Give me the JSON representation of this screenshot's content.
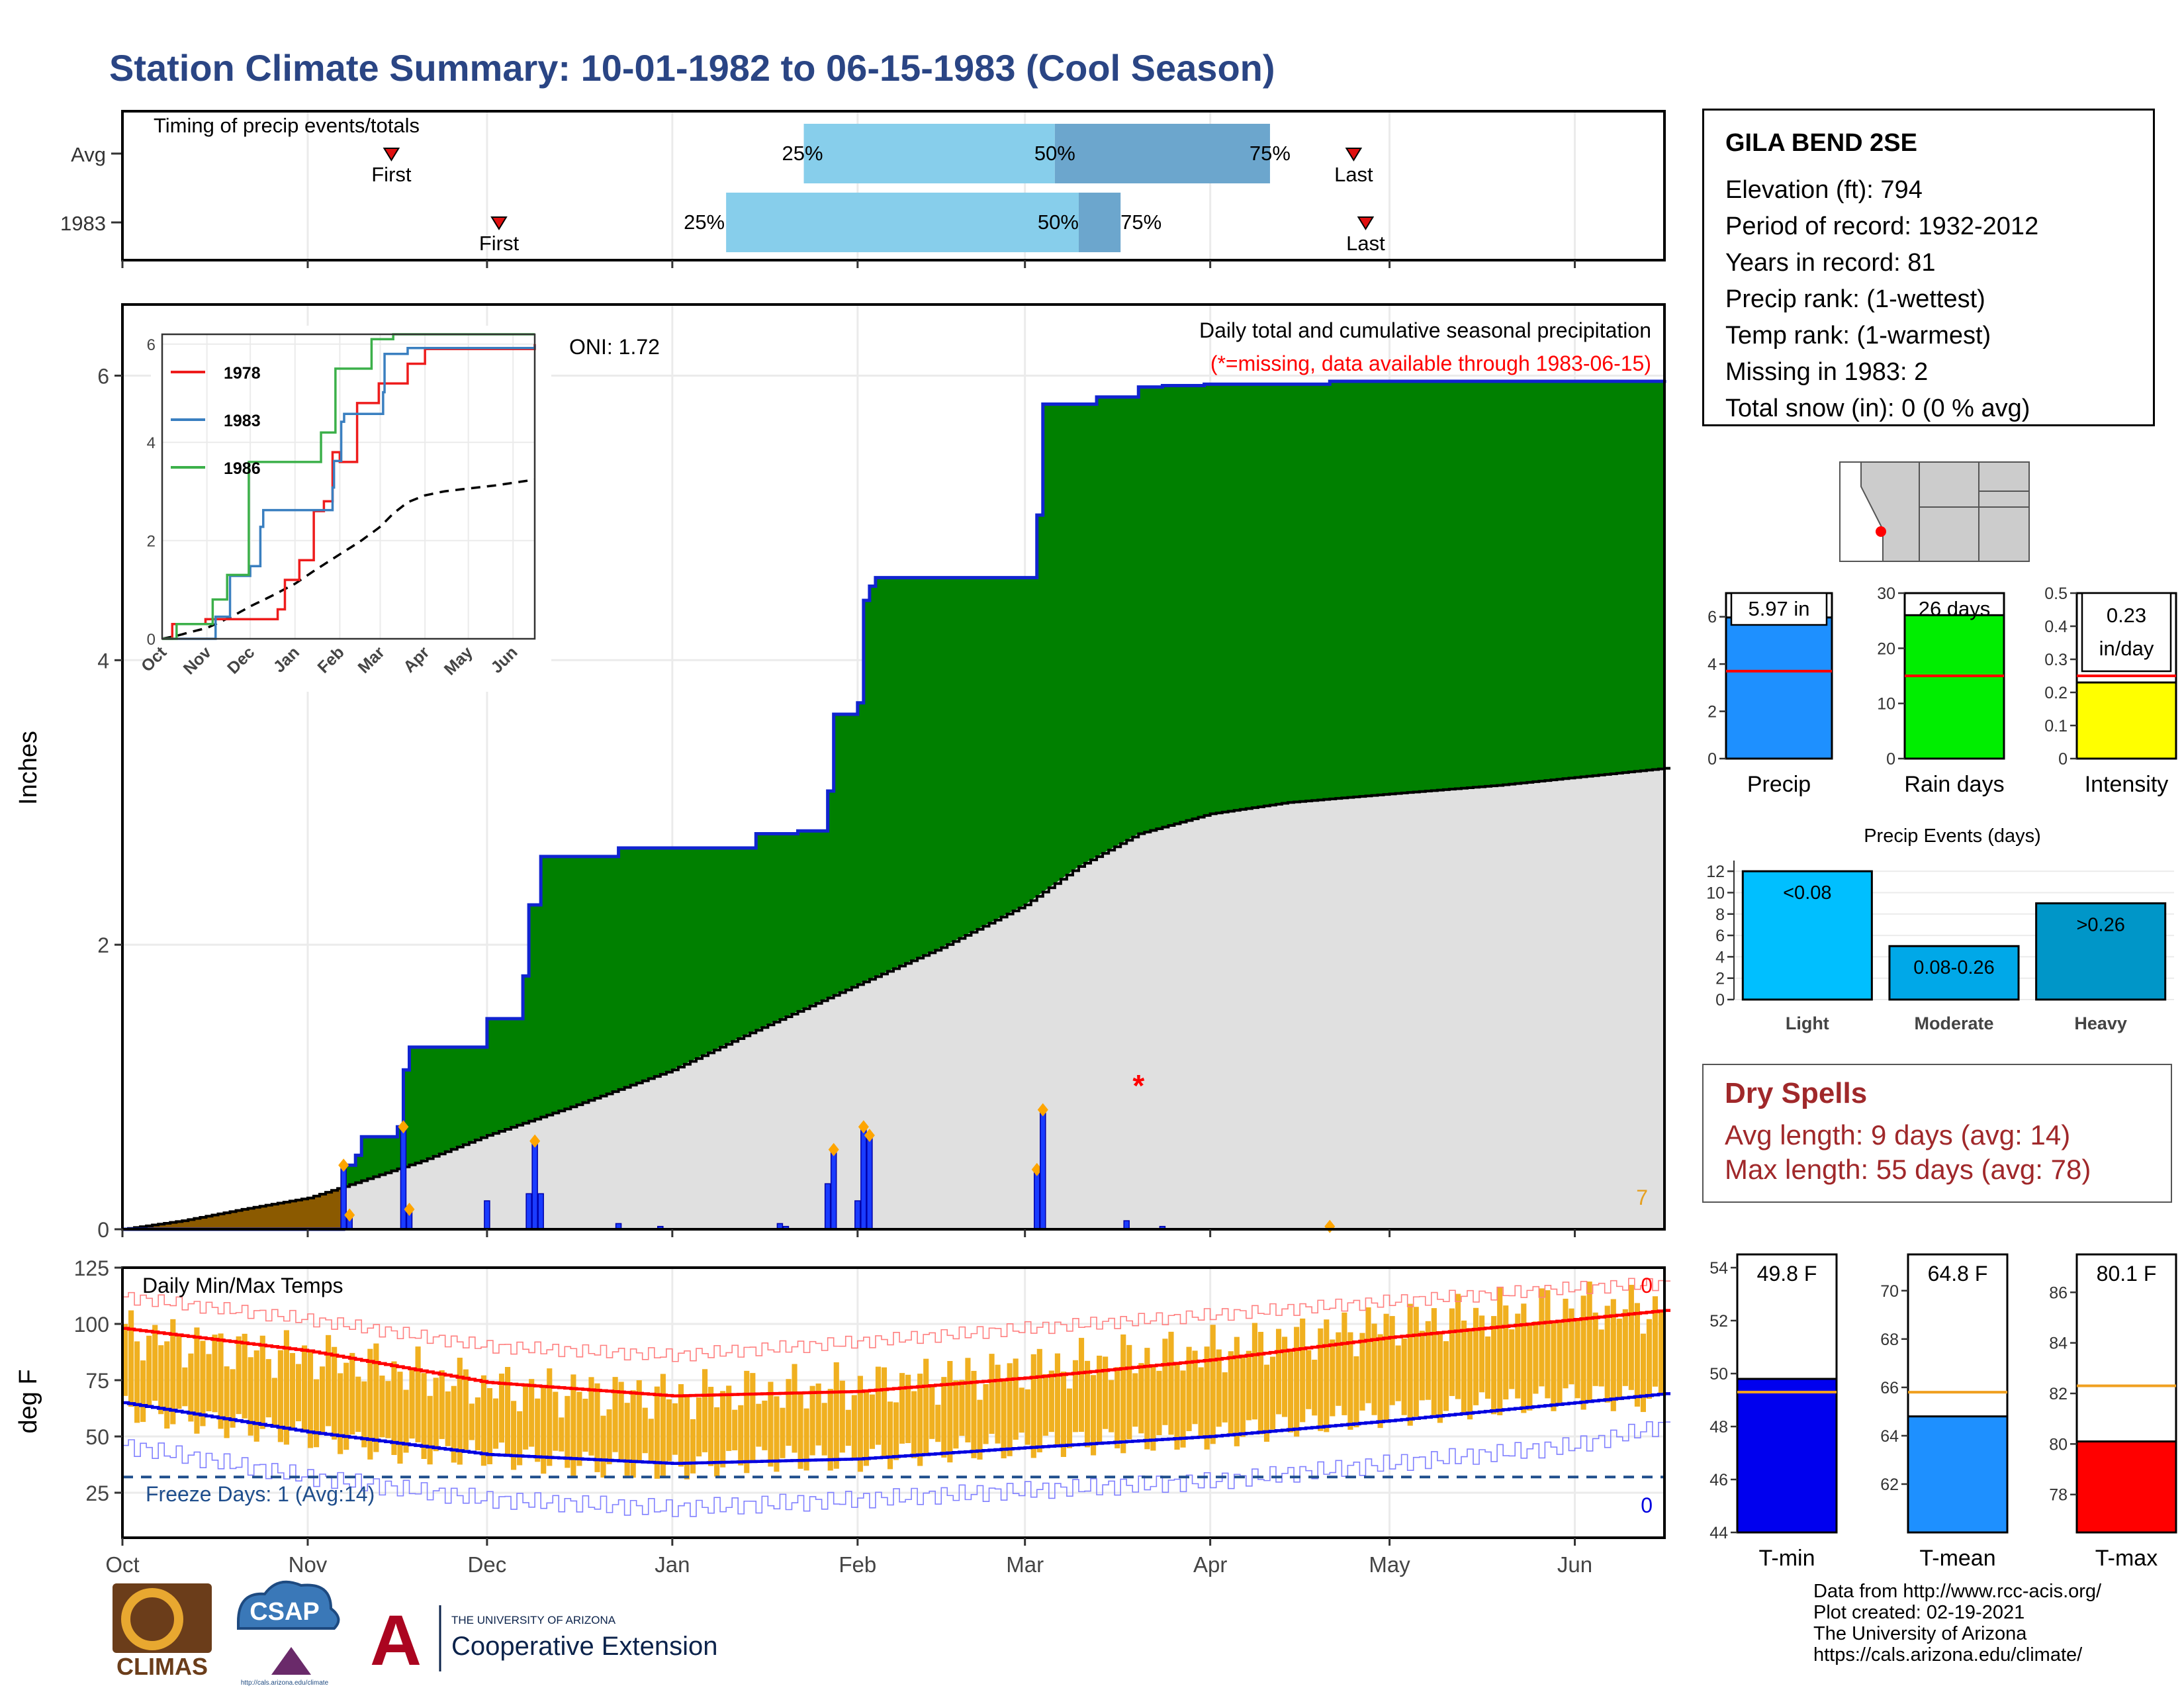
{
  "title": "Station Climate Summary: 10-01-1982 to 06-15-1983 (Cool Season)",
  "station": {
    "name": "GILA BEND 2SE",
    "lines": [
      "Elevation (ft): 794",
      "Period of record: 1932-2012",
      "Years in record: 81",
      "Precip rank:  (1-wettest)",
      "Temp rank:  (1-warmest)",
      "Missing in 1983: 2",
      "Total snow (in): 0 (0 % avg)"
    ]
  },
  "dry_spells": {
    "title": "Dry Spells",
    "avg": "Avg length: 9 days (avg: 14)",
    "max": "Max length: 55 days (avg: 78)"
  },
  "credits": [
    "Data from http://www.rcc-acis.org/",
    "Plot created: 02-19-2021",
    "The University of Arizona",
    "https://cals.arizona.edu/climate/"
  ],
  "logos": {
    "climas": "CLIMAS",
    "csap": "CSAP",
    "csap_url": "http://cals.arizona.edu/climate",
    "ua_small": "THE UNIVERSITY OF ARIZONA",
    "ua_big": "Cooperative Extension",
    "ua_mark": "A"
  },
  "colors": {
    "title": "#2a4584",
    "dry_spells": "#a0282a",
    "cumulative_fill": "#008000",
    "cumulative_line": "#1024d0",
    "normal_fill": "#e0e0e0",
    "precip_bars": "#1a3cff",
    "avg_line": "#000000",
    "temp_bars": "#f0b020",
    "tmax_avg": "#ff0000",
    "tmin_avg": "#0000e0",
    "precip_box": "#1e90ff",
    "raindays_box": "#00ee00",
    "intensity_box": "#ffff00",
    "tmin_box": "#0000ee",
    "tmean_box": "#1e90ff",
    "tmax_box": "#ff0000"
  },
  "chart_data": [
    {
      "type": "timeline",
      "title": "Timing of precip events/totals",
      "rows": [
        {
          "label": "Avg",
          "first": "First",
          "last": "Last",
          "first_day": 45,
          "last_day": 206,
          "p25_day": 114,
          "p50_day": 156,
          "p75_day": 192,
          "p25_label": "25%",
          "p50_label": "50%",
          "p75_label": "75%"
        },
        {
          "label": "1983",
          "first": "First",
          "last": "Last",
          "first_day": 63,
          "last_day": 208,
          "p25_day": 101,
          "p50_day": 160,
          "p75_day": 167,
          "p25_label": "25%",
          "p50_label": "50%",
          "p75_label": "75%"
        }
      ]
    },
    {
      "type": "area",
      "title": "Daily total and cumulative seasonal precipitation",
      "subtitle": "(*=missing, data available through 1983-06-15)",
      "ylabel": "Inches",
      "ylim": [
        0,
        6.5
      ],
      "yticks": [
        0,
        2,
        4,
        6
      ],
      "oni": "ONI: 1.72",
      "corner_count": "7",
      "xticks": [
        "Oct",
        "Nov",
        "Dec",
        "Jan",
        "Feb",
        "Mar",
        "Apr",
        "May",
        "Jun"
      ],
      "month_days": [
        0,
        31,
        61,
        92,
        123,
        151,
        182,
        212,
        243
      ],
      "season_days": 258,
      "cumulative_steps": [
        [
          0,
          0
        ],
        [
          37,
          0.45
        ],
        [
          39,
          0.52
        ],
        [
          40,
          0.65
        ],
        [
          46,
          0.72
        ],
        [
          47,
          1.12
        ],
        [
          48,
          1.28
        ],
        [
          61,
          1.48
        ],
        [
          67,
          1.78
        ],
        [
          68,
          2.28
        ],
        [
          70,
          2.62
        ],
        [
          83,
          2.68
        ],
        [
          106,
          2.78
        ],
        [
          113,
          2.8
        ],
        [
          118,
          3.08
        ],
        [
          119,
          3.62
        ],
        [
          123,
          3.7
        ],
        [
          124,
          4.42
        ],
        [
          125,
          4.52
        ],
        [
          126,
          4.58
        ],
        [
          153,
          5.02
        ],
        [
          154,
          5.8
        ],
        [
          163,
          5.85
        ],
        [
          170,
          5.92
        ],
        [
          174,
          5.93
        ],
        [
          181,
          5.94
        ],
        [
          202,
          5.96
        ],
        [
          258,
          5.97
        ]
      ],
      "normal_cumulative": [
        [
          0,
          0
        ],
        [
          10,
          0.06
        ],
        [
          20,
          0.14
        ],
        [
          31,
          0.22
        ],
        [
          37,
          0.3
        ],
        [
          50,
          0.48
        ],
        [
          61,
          0.66
        ],
        [
          75,
          0.86
        ],
        [
          92,
          1.12
        ],
        [
          105,
          1.38
        ],
        [
          123,
          1.72
        ],
        [
          137,
          1.98
        ],
        [
          151,
          2.28
        ],
        [
          160,
          2.55
        ],
        [
          170,
          2.78
        ],
        [
          182,
          2.92
        ],
        [
          195,
          3.0
        ],
        [
          212,
          3.06
        ],
        [
          230,
          3.12
        ],
        [
          258,
          3.24
        ]
      ],
      "daily_precip": [
        [
          37,
          0.45
        ],
        [
          38,
          0.1
        ],
        [
          47,
          0.72
        ],
        [
          48,
          0.14
        ],
        [
          61,
          0.2
        ],
        [
          68,
          0.25
        ],
        [
          69,
          0.62
        ],
        [
          70,
          0.25
        ],
        [
          83,
          0.04
        ],
        [
          90,
          0.02
        ],
        [
          110,
          0.04
        ],
        [
          111,
          0.02
        ],
        [
          118,
          0.32
        ],
        [
          119,
          0.56
        ],
        [
          123,
          0.2
        ],
        [
          124,
          0.72
        ],
        [
          125,
          0.66
        ],
        [
          153,
          0.42
        ],
        [
          154,
          0.84
        ],
        [
          168,
          0.06
        ],
        [
          174,
          0.02
        ],
        [
          202,
          0.02
        ]
      ],
      "missing_marker_day": 170,
      "missing_marker_value": 1.0
    },
    {
      "type": "line",
      "series": [
        {
          "name": "1978",
          "points": [
            [
              0,
              0
            ],
            [
              7,
              0.3
            ],
            [
              30,
              0.4
            ],
            [
              80,
              0.6
            ],
            [
              85,
              1.2
            ],
            [
              95,
              1.6
            ],
            [
              105,
              2.6
            ],
            [
              112,
              2.8
            ],
            [
              118,
              3.8
            ],
            [
              123,
              3.6
            ],
            [
              135,
              4.8
            ],
            [
              150,
              5.2
            ],
            [
              170,
              5.6
            ],
            [
              182,
              5.9
            ],
            [
              258,
              6.0
            ]
          ]
        },
        {
          "name": "1983",
          "points": [
            [
              0,
              0
            ],
            [
              37,
              0.45
            ],
            [
              47,
              1.28
            ],
            [
              61,
              1.48
            ],
            [
              68,
              2.28
            ],
            [
              70,
              2.62
            ],
            [
              118,
              3.08
            ],
            [
              119,
              3.62
            ],
            [
              124,
              4.42
            ],
            [
              126,
              4.58
            ],
            [
              153,
              5.02
            ],
            [
              154,
              5.8
            ],
            [
              170,
              5.92
            ],
            [
              258,
              5.97
            ]
          ]
        },
        {
          "name": "1986",
          "points": [
            [
              0,
              0
            ],
            [
              10,
              0.3
            ],
            [
              35,
              0.8
            ],
            [
              45,
              1.3
            ],
            [
              60,
              3.6
            ],
            [
              80,
              3.6
            ],
            [
              110,
              4.2
            ],
            [
              120,
              5.5
            ],
            [
              145,
              6.1
            ],
            [
              160,
              6.5
            ],
            [
              258,
              6.5
            ]
          ]
        }
      ],
      "ylim": [
        0,
        6.2
      ],
      "yticks": [
        0,
        2,
        4,
        6
      ],
      "xticks": [
        "Oct",
        "Nov",
        "Dec",
        "Jan",
        "Feb",
        "Mar",
        "Apr",
        "May",
        "Jun"
      ]
    },
    {
      "type": "bar",
      "title": "Daily Min/Max Temps",
      "ylabel": "deg F",
      "ylim": [
        5,
        125
      ],
      "yticks": [
        25,
        50,
        75,
        100,
        125
      ],
      "freeze_label": "Freeze Days: 1 (Avg:14)",
      "freeze_line": 32,
      "record_high_count": "0",
      "record_low_count": "0",
      "xticks": [
        "Oct",
        "Nov",
        "Dec",
        "Jan",
        "Feb",
        "Mar",
        "Apr",
        "May",
        "Jun"
      ],
      "tmax_avg": [
        [
          0,
          98
        ],
        [
          31,
          88
        ],
        [
          61,
          74
        ],
        [
          92,
          68
        ],
        [
          123,
          70
        ],
        [
          151,
          76
        ],
        [
          182,
          84
        ],
        [
          212,
          94
        ],
        [
          243,
          102
        ],
        [
          258,
          106
        ]
      ],
      "tmin_avg": [
        [
          0,
          65
        ],
        [
          31,
          52
        ],
        [
          61,
          42
        ],
        [
          92,
          38
        ],
        [
          123,
          40
        ],
        [
          151,
          45
        ],
        [
          182,
          50
        ],
        [
          212,
          57
        ],
        [
          243,
          65
        ],
        [
          258,
          69
        ]
      ],
      "record_high": [
        [
          0,
          112
        ],
        [
          31,
          102
        ],
        [
          61,
          90
        ],
        [
          92,
          86
        ],
        [
          123,
          92
        ],
        [
          151,
          98
        ],
        [
          182,
          104
        ],
        [
          212,
          110
        ],
        [
          243,
          116
        ],
        [
          258,
          118
        ]
      ],
      "record_low": [
        [
          0,
          46
        ],
        [
          31,
          32
        ],
        [
          61,
          22
        ],
        [
          92,
          18
        ],
        [
          123,
          22
        ],
        [
          151,
          26
        ],
        [
          182,
          30
        ],
        [
          212,
          38
        ],
        [
          243,
          46
        ],
        [
          258,
          55
        ]
      ],
      "daily_samples": [
        [
          0,
          96,
          62
        ],
        [
          15,
          90,
          56
        ],
        [
          31,
          86,
          50
        ],
        [
          45,
          80,
          44
        ],
        [
          61,
          72,
          42
        ],
        [
          75,
          70,
          38
        ],
        [
          92,
          68,
          36
        ],
        [
          105,
          70,
          40
        ],
        [
          123,
          72,
          40
        ],
        [
          137,
          76,
          44
        ],
        [
          151,
          80,
          46
        ],
        [
          165,
          84,
          48
        ],
        [
          182,
          88,
          50
        ],
        [
          197,
          94,
          56
        ],
        [
          212,
          100,
          60
        ],
        [
          228,
          104,
          64
        ],
        [
          243,
          108,
          68
        ],
        [
          258,
          106,
          66
        ]
      ]
    },
    {
      "type": "bar",
      "panel": "precip_total",
      "label": "Precip",
      "value": 5.97,
      "value_label": "5.97 in",
      "avg": 3.7,
      "ylim": [
        0,
        7
      ],
      "yticks": [
        0,
        2,
        4,
        6
      ]
    },
    {
      "type": "bar",
      "panel": "rain_days",
      "label": "Rain days",
      "value": 26,
      "value_label": "26 days",
      "avg": 15,
      "ylim": [
        0,
        30
      ],
      "yticks": [
        0,
        10,
        20,
        30
      ]
    },
    {
      "type": "bar",
      "panel": "intensity",
      "label": "Intensity",
      "value": 0.23,
      "value_label": "0.23",
      "value_label2": "in/day",
      "avg": 0.25,
      "ylim": [
        0,
        0.5
      ],
      "yticks": [
        0.0,
        0.1,
        0.2,
        0.3,
        0.4,
        0.5
      ]
    },
    {
      "type": "bar",
      "title": "Precip Events (days)",
      "categories": [
        "Light",
        "Moderate",
        "Heavy"
      ],
      "values": [
        12,
        5,
        9
      ],
      "labels": [
        "<0.08",
        "0.08-0.26",
        ">0.26"
      ],
      "ylim": [
        0,
        13
      ],
      "yticks": [
        0,
        2,
        4,
        6,
        8,
        10,
        12
      ]
    },
    {
      "type": "bar",
      "panel": "tmin",
      "label": "T-min",
      "value": 49.8,
      "value_label": "49.8 F",
      "avg": 49.3,
      "ylim": [
        44,
        54.5
      ],
      "yticks": [
        44,
        46,
        48,
        50,
        52,
        54
      ]
    },
    {
      "type": "bar",
      "panel": "tmean",
      "label": "T-mean",
      "value": 64.8,
      "value_label": "64.8 F",
      "avg": 65.8,
      "ylim": [
        60,
        71.5
      ],
      "yticks": [
        62,
        64,
        66,
        68,
        70
      ]
    },
    {
      "type": "bar",
      "panel": "tmax",
      "label": "T-max",
      "value": 80.1,
      "value_label": "80.1 F",
      "avg": 82.3,
      "ylim": [
        76.5,
        87.5
      ],
      "yticks": [
        78,
        80,
        82,
        84,
        86
      ]
    }
  ]
}
